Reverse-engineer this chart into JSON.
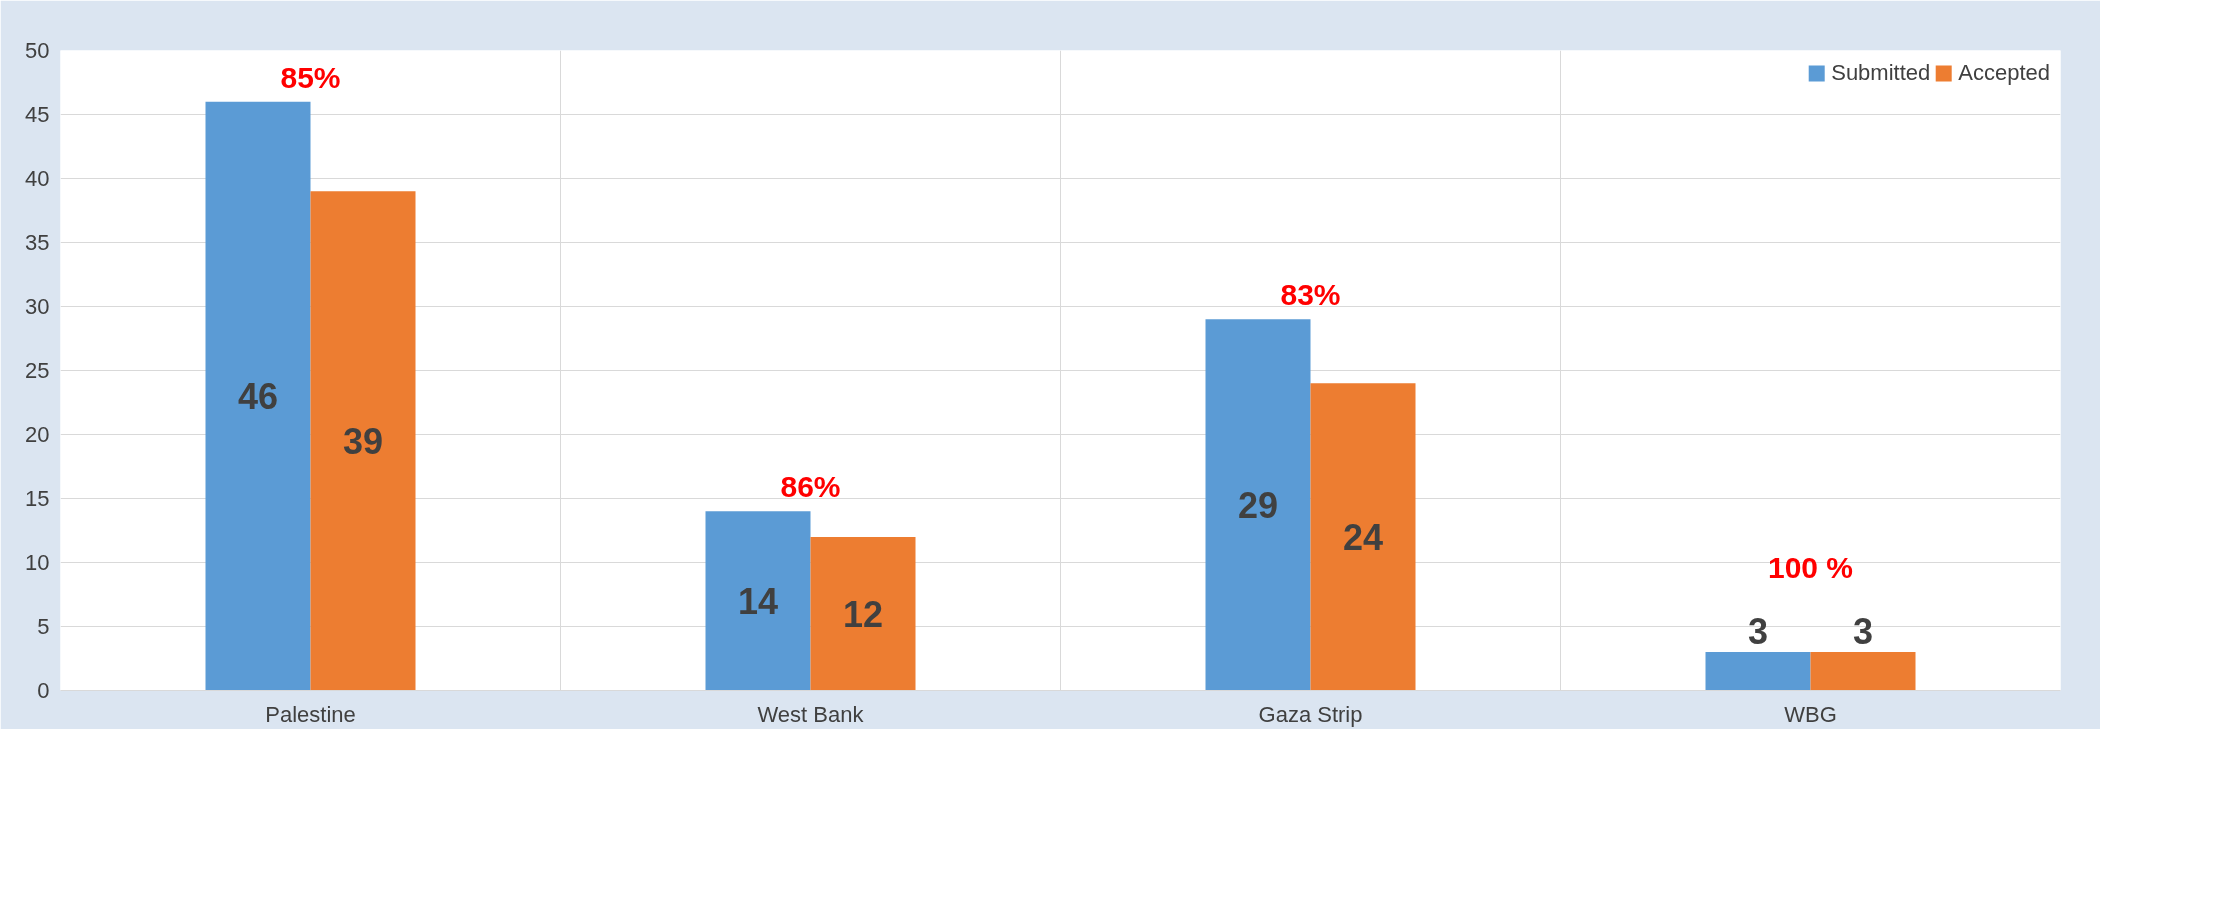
{
  "chart_data": {
    "type": "bar",
    "categories": [
      "Palestine",
      "West Bank",
      "Gaza Strip",
      "WBG"
    ],
    "series": [
      {
        "name": "Submitted",
        "color": "#5b9bd5",
        "values": [
          46,
          14,
          29,
          3
        ]
      },
      {
        "name": "Accepted",
        "color": "#ed7d31",
        "values": [
          39,
          12,
          24,
          3
        ]
      }
    ],
    "ylim": [
      0,
      50
    ],
    "yticks": [
      0,
      5,
      10,
      15,
      20,
      25,
      30,
      35,
      40,
      45,
      50
    ],
    "grid": true,
    "legend": "top right",
    "data_labels": true,
    "annotations": [
      "85%",
      "86%",
      "83%",
      "100 %"
    ]
  }
}
